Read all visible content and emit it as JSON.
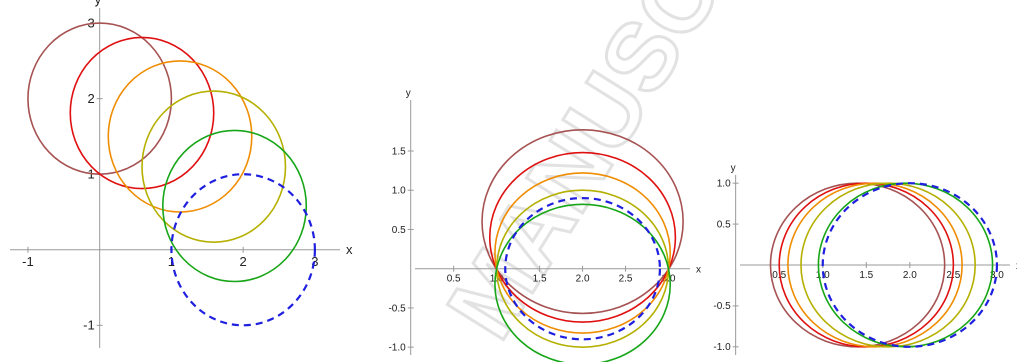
{
  "watermark": "MANUSCRIPT",
  "colors": {
    "axis": "#9a9a9a",
    "dashed_circle": "#1f1fe0",
    "series": [
      "#a65252",
      "#e01010",
      "#f08c00",
      "#b5b000",
      "#17a617"
    ]
  },
  "chart_data": [
    {
      "type": "line",
      "title": "",
      "xlabel": "x",
      "ylabel": "y",
      "xlim": [
        -1.25,
        3.35
      ],
      "ylim": [
        -1.3,
        3.2
      ],
      "xticks": [
        -1,
        1,
        2,
        3
      ],
      "xtick_labels": [
        "-1",
        "1",
        "2",
        "3"
      ],
      "yticks": [
        -1,
        1,
        2,
        3
      ],
      "ytick_labels": [
        "-1",
        "1",
        "2",
        "3"
      ],
      "grid": false,
      "series": [
        {
          "shape": "circle",
          "cx": 0,
          "cy": 2,
          "r": 1,
          "color": "#a65252",
          "style": "solid"
        },
        {
          "shape": "circle",
          "cx": 0.59,
          "cy": 1.81,
          "r": 1,
          "color": "#e01010",
          "style": "solid"
        },
        {
          "shape": "circle",
          "cx": 1.12,
          "cy": 1.5,
          "r": 1,
          "color": "#f08c00",
          "style": "solid"
        },
        {
          "shape": "circle",
          "cx": 1.59,
          "cy": 1.1,
          "r": 1,
          "color": "#b5b000",
          "style": "solid"
        },
        {
          "shape": "circle",
          "cx": 1.88,
          "cy": 0.58,
          "r": 1,
          "color": "#17a617",
          "style": "solid"
        },
        {
          "shape": "circle",
          "cx": 2,
          "cy": 0,
          "r": 1,
          "color": "#1f1fe0",
          "style": "dashed"
        }
      ]
    },
    {
      "type": "line",
      "title": "",
      "xlabel": "x",
      "ylabel": "y",
      "xlim": [
        0.05,
        3.25
      ],
      "ylim": [
        -1.1,
        2.15
      ],
      "xticks": [
        0.5,
        1.0,
        1.5,
        2.0,
        2.5,
        3.0
      ],
      "xtick_labels": [
        "0.5",
        "1.0",
        "1.5",
        "2.0",
        "2.5",
        "3.0"
      ],
      "yticks": [
        -1.0,
        -0.5,
        0.5,
        1.0,
        1.5
      ],
      "ytick_labels": [
        "-1.0",
        "-0.5",
        "0.5",
        "1.0",
        "1.5"
      ],
      "grid": false,
      "series": [
        {
          "shape": "circle",
          "cx": 2,
          "cy": 0.6,
          "r": 1.17,
          "color": "#a65252",
          "style": "solid"
        },
        {
          "shape": "circle",
          "cx": 2,
          "cy": 0.4,
          "r": 1.08,
          "color": "#e01010",
          "style": "solid"
        },
        {
          "shape": "circle",
          "cx": 2,
          "cy": 0.2,
          "r": 1.02,
          "color": "#f08c00",
          "style": "solid"
        },
        {
          "shape": "circle",
          "cx": 2,
          "cy": 0.0,
          "r": 1.0,
          "color": "#b5b000",
          "style": "solid"
        },
        {
          "shape": "circle",
          "cx": 2,
          "cy": -0.2,
          "r": 1.02,
          "color": "#17a617",
          "style": "solid"
        },
        {
          "shape": "circle",
          "cx": 2,
          "cy": 0.0,
          "r": 0.9,
          "color": "#1f1fe0",
          "style": "dashed"
        }
      ]
    },
    {
      "type": "line",
      "title": "",
      "xlabel": "x",
      "ylabel": "y",
      "xlim": [
        0.05,
        3.15
      ],
      "ylim": [
        -1.1,
        1.1
      ],
      "xticks": [
        0.5,
        1.0,
        1.5,
        2.0,
        2.5,
        3.0
      ],
      "xtick_labels": [
        "0.5",
        "1.0",
        "1.5",
        "2.0",
        "2.5",
        "3.0"
      ],
      "yticks": [
        -1.0,
        -0.5,
        0.5,
        1.0
      ],
      "ytick_labels": [
        "-1.0",
        "-0.5",
        "0.5",
        "1.0"
      ],
      "grid": false,
      "series": [
        {
          "shape": "circle",
          "cx": 1.4,
          "cy": 0,
          "r": 1.0,
          "color": "#a65252",
          "style": "solid"
        },
        {
          "shape": "circle",
          "cx": 1.5,
          "cy": 0,
          "r": 1.0,
          "color": "#e01010",
          "style": "solid"
        },
        {
          "shape": "circle",
          "cx": 1.6,
          "cy": 0,
          "r": 1.0,
          "color": "#f08c00",
          "style": "solid"
        },
        {
          "shape": "circle",
          "cx": 1.75,
          "cy": 0,
          "r": 1.0,
          "color": "#b5b000",
          "style": "solid"
        },
        {
          "shape": "circle",
          "cx": 1.95,
          "cy": 0,
          "r": 1.0,
          "color": "#17a617",
          "style": "solid"
        },
        {
          "shape": "circle",
          "cx": 2.0,
          "cy": 0,
          "r": 1.0,
          "color": "#1f1fe0",
          "style": "dashed"
        }
      ]
    }
  ]
}
